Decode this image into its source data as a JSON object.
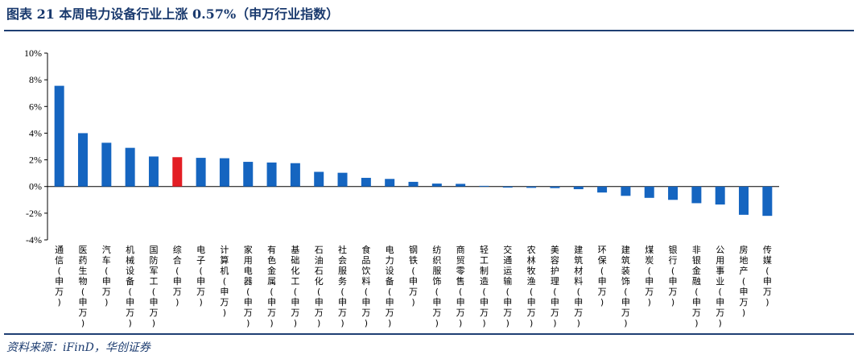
{
  "header": {
    "title": "图表 21 本周电力设备行业上涨 0.57%（申万行业指数）"
  },
  "footer": {
    "source": "资料来源：iFinD，华创证券"
  },
  "colors": {
    "bar": "#1565C0",
    "highlight": "#E31E24",
    "rule": "#1F3F73"
  },
  "chart_data": {
    "type": "bar",
    "ylim": [
      -4,
      10
    ],
    "yticks": [
      "-4%",
      "-2%",
      "0%",
      "2%",
      "4%",
      "6%",
      "8%",
      "10%"
    ],
    "grid": false,
    "legend": "none",
    "highlight_index": 5,
    "categories": [
      "通信(申万)",
      "医药生物(申万)",
      "汽车(申万)",
      "机械设备(申万)",
      "国防军工(申万)",
      "综合(申万)",
      "电子(申万)",
      "计算机(申万)",
      "家用电器(申万)",
      "有色金属(申万)",
      "基础化工(申万)",
      "石油石化(申万)",
      "社会服务(申万)",
      "食品饮料(申万)",
      "电力设备(申万)",
      "钢铁(申万)",
      "纺织服饰(申万)",
      "商贸零售(申万)",
      "轻工制造(申万)",
      "交通运输(申万)",
      "农林牧渔(申万)",
      "美容护理(申万)",
      "建筑材料(申万)",
      "环保(申万)",
      "建筑装饰(申万)",
      "煤炭(申万)",
      "银行(申万)",
      "非银金融(申万)",
      "公用事业(申万)",
      "房地产(申万)",
      "传媒(申万)"
    ],
    "values": [
      7.55,
      4.0,
      3.28,
      2.9,
      2.25,
      2.2,
      2.15,
      2.12,
      1.85,
      1.8,
      1.75,
      1.1,
      1.03,
      0.65,
      0.57,
      0.35,
      0.22,
      0.2,
      0.05,
      -0.08,
      -0.1,
      -0.12,
      -0.2,
      -0.45,
      -0.7,
      -0.85,
      -1.0,
      -1.25,
      -1.35,
      -2.12,
      -2.2
    ]
  }
}
